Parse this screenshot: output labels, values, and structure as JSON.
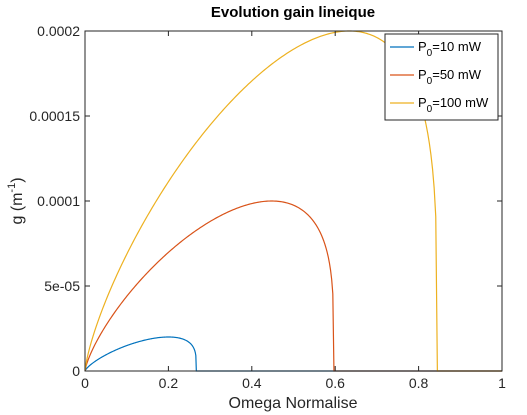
{
  "chart_data": {
    "type": "line",
    "title": "Evolution gain lineique",
    "xlabel": "Omega Normalise",
    "ylabel": {
      "main": "g (m",
      "sup": "-1",
      "close": ")"
    },
    "xlim": [
      0,
      1
    ],
    "ylim": [
      0,
      0.0002
    ],
    "x_ticks": [
      {
        "value": 0,
        "label": "0"
      },
      {
        "value": 0.2,
        "label": "0.2"
      },
      {
        "value": 0.4,
        "label": "0.4"
      },
      {
        "value": 0.6,
        "label": "0.6"
      },
      {
        "value": 0.8,
        "label": "0.8"
      },
      {
        "value": 1,
        "label": "1"
      }
    ],
    "y_ticks": [
      {
        "value": 0,
        "label": "0"
      },
      {
        "value": 5e-05,
        "label": "5e-05"
      },
      {
        "value": 0.0001,
        "label": "0.0001"
      },
      {
        "value": 0.00015,
        "label": "0.00015"
      },
      {
        "value": 0.0002,
        "label": "0.0002"
      }
    ],
    "grid": false,
    "legend_position": "top-right",
    "series": [
      {
        "name_main": "P",
        "name_sub": "0",
        "name_rest": "=10 mW",
        "color": "#0072bd",
        "x_end": 0.267,
        "y_peak": 2e-05,
        "x_peak": 0.19
      },
      {
        "name_main": "P",
        "name_sub": "0",
        "name_rest": "=50 mW",
        "color": "#d95319",
        "x_end": 0.597,
        "y_peak": 0.0001,
        "x_peak": 0.42
      },
      {
        "name_main": "P",
        "name_sub": "0",
        "name_rest": "=100 mW",
        "color": "#edb120",
        "x_end": 0.845,
        "y_peak": 0.0002,
        "x_peak": 0.6
      }
    ]
  }
}
